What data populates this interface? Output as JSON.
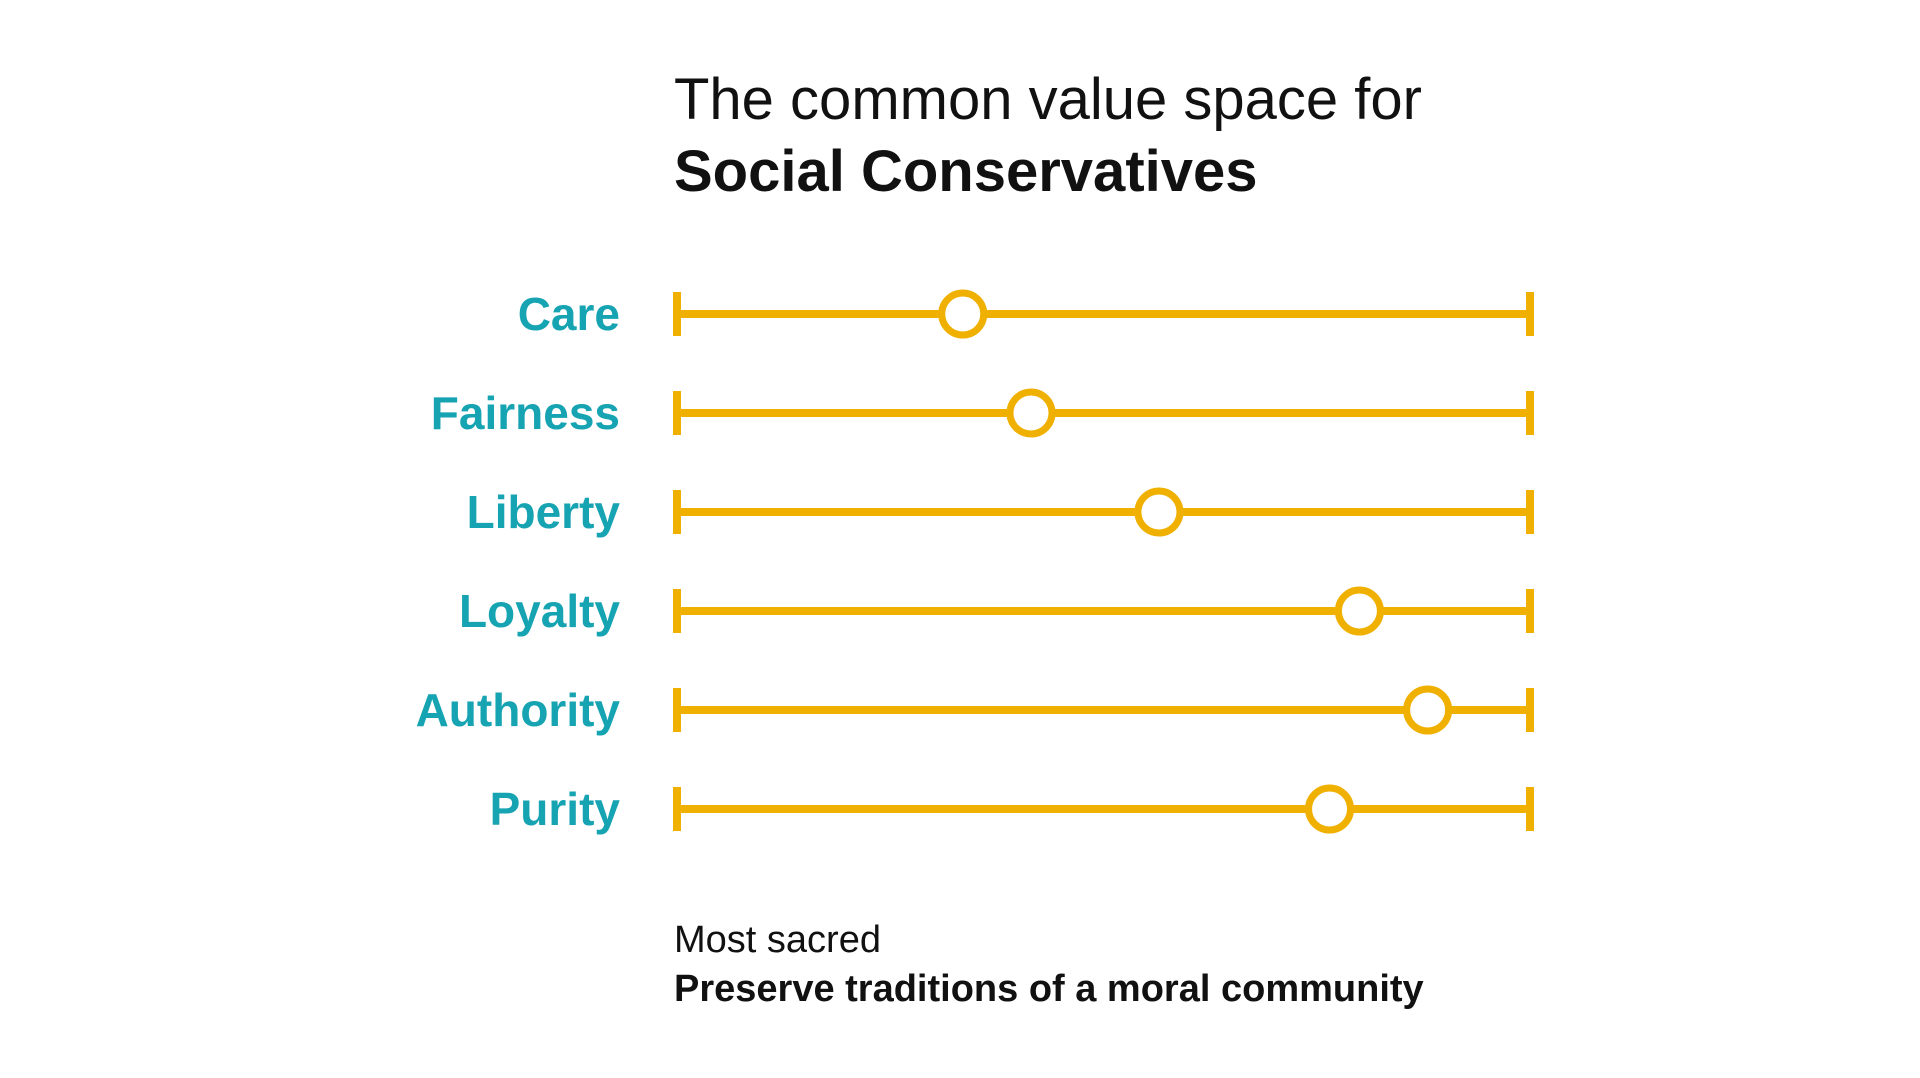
{
  "title": {
    "line1": "The common value space for",
    "line2": "Social Conservatives"
  },
  "footer": {
    "line1": "Most sacred",
    "line2": "Preserve traditions of a moral community"
  },
  "colors": {
    "track": "#F0B000",
    "label": "#16A3B2",
    "marker_fill": "#FFFFFF",
    "text": "#111111"
  },
  "chart_data": {
    "type": "dot-scale",
    "xlim": [
      0,
      1
    ],
    "categories": [
      "Care",
      "Fairness",
      "Liberty",
      "Loyalty",
      "Authority",
      "Purity"
    ],
    "values": [
      0.335,
      0.415,
      0.565,
      0.8,
      0.88,
      0.765
    ]
  }
}
